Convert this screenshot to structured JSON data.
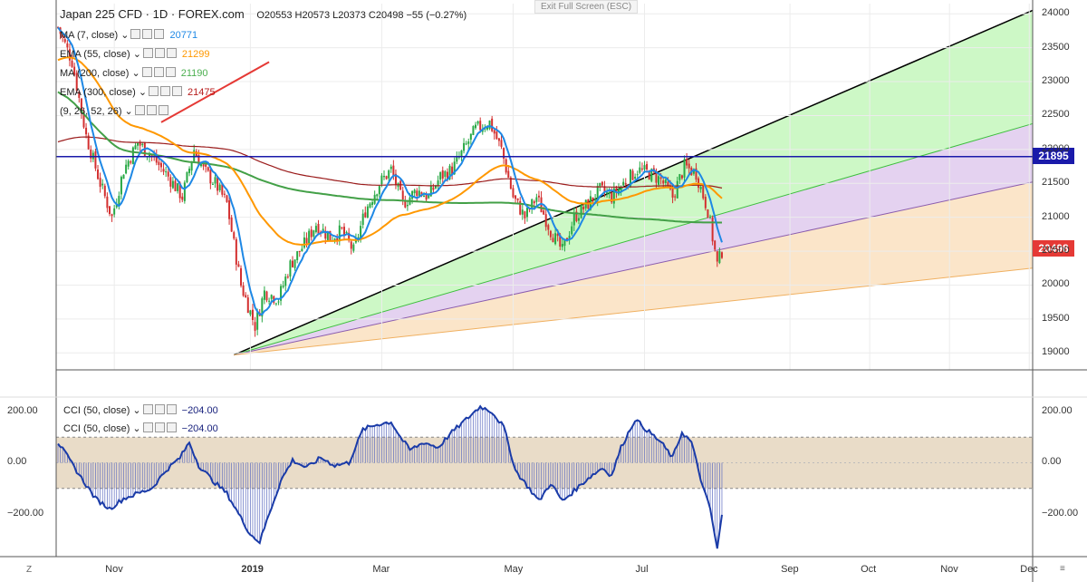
{
  "header": {
    "title": "Japan 225 CFD · 1D · FOREX.com",
    "ohlc": "O20553  H20573  L20373  C20498  −55 (−0.27%)",
    "exit_fullscreen": "Exit Full Screen (ESC)"
  },
  "legends": [
    {
      "label": "MA (7, close)",
      "value": "20771",
      "color": "#1e88e5"
    },
    {
      "label": "EMA (55, close)",
      "value": "21299",
      "color": "#ff9800"
    },
    {
      "label": "MA (200, close)",
      "value": "21190",
      "color": "#4caf50"
    },
    {
      "label": "EMA (300, close)",
      "value": "21475",
      "color": "#b71c1c"
    },
    {
      "label": "(9, 26, 52, 26)",
      "value": "",
      "color": "#555555"
    }
  ],
  "cci_legends": [
    {
      "label": "CCI (50, close)",
      "value": "−204.00",
      "color": "#1a237e"
    },
    {
      "label": "CCI (50, close)",
      "value": "−204.00",
      "color": "#1a237e"
    }
  ],
  "price_tags": {
    "hline": {
      "value": "21895",
      "color": "#1a1aaa"
    },
    "last": {
      "value": "20498",
      "color": "#e53935"
    }
  },
  "bottom": {
    "left_button": "Z",
    "right_button": "≡"
  },
  "chart_data": {
    "type": "candlestick",
    "symbol": "Japan 225 CFD",
    "timeframe": "1D",
    "yaxis": {
      "ticks": [
        19000,
        19500,
        20000,
        20500,
        21000,
        21500,
        22000,
        22500,
        23000,
        23500,
        24000
      ],
      "range": [
        18750,
        24150
      ]
    },
    "xaxis": {
      "ticks": [
        "Nov",
        "2019",
        "Mar",
        "May",
        "Jul",
        "Sep",
        "Oct",
        "Nov",
        "Dec"
      ]
    },
    "horizontal_line": 21895,
    "last_price": 20498,
    "price_path": [
      {
        "d": 0,
        "p": 23800
      },
      {
        "d": 6,
        "p": 23300
      },
      {
        "d": 12,
        "p": 22200
      },
      {
        "d": 18,
        "p": 21500
      },
      {
        "d": 23,
        "p": 21000
      },
      {
        "d": 28,
        "p": 21700
      },
      {
        "d": 34,
        "p": 22100
      },
      {
        "d": 40,
        "p": 21900
      },
      {
        "d": 47,
        "p": 21600
      },
      {
        "d": 53,
        "p": 21300
      },
      {
        "d": 58,
        "p": 22000
      },
      {
        "d": 62,
        "p": 21700
      },
      {
        "d": 67,
        "p": 21500
      },
      {
        "d": 72,
        "p": 21200
      },
      {
        "d": 78,
        "p": 20000
      },
      {
        "d": 84,
        "p": 19400
      },
      {
        "d": 88,
        "p": 19900
      },
      {
        "d": 94,
        "p": 19800
      },
      {
        "d": 99,
        "p": 20300
      },
      {
        "d": 105,
        "p": 20600
      },
      {
        "d": 110,
        "p": 20900
      },
      {
        "d": 116,
        "p": 20700
      },
      {
        "d": 121,
        "p": 20800
      },
      {
        "d": 126,
        "p": 20500
      },
      {
        "d": 131,
        "p": 21100
      },
      {
        "d": 137,
        "p": 21500
      },
      {
        "d": 142,
        "p": 21700
      },
      {
        "d": 147,
        "p": 21200
      },
      {
        "d": 153,
        "p": 21400
      },
      {
        "d": 158,
        "p": 21300
      },
      {
        "d": 163,
        "p": 21600
      },
      {
        "d": 168,
        "p": 21700
      },
      {
        "d": 173,
        "p": 22000
      },
      {
        "d": 178,
        "p": 22300
      },
      {
        "d": 184,
        "p": 22400
      },
      {
        "d": 189,
        "p": 22000
      },
      {
        "d": 194,
        "p": 21300
      },
      {
        "d": 199,
        "p": 21000
      },
      {
        "d": 204,
        "p": 21300
      },
      {
        "d": 210,
        "p": 20800
      },
      {
        "d": 215,
        "p": 20500
      },
      {
        "d": 220,
        "p": 21000
      },
      {
        "d": 226,
        "p": 21200
      },
      {
        "d": 231,
        "p": 21400
      },
      {
        "d": 236,
        "p": 21300
      },
      {
        "d": 241,
        "p": 21500
      },
      {
        "d": 247,
        "p": 21700
      },
      {
        "d": 252,
        "p": 21650
      },
      {
        "d": 257,
        "p": 21550
      },
      {
        "d": 262,
        "p": 21300
      },
      {
        "d": 267,
        "p": 21750
      },
      {
        "d": 272,
        "p": 21650
      },
      {
        "d": 277,
        "p": 21100
      },
      {
        "d": 281,
        "p": 20300
      },
      {
        "d": 283,
        "p": 20498
      }
    ],
    "indicators": [
      {
        "name": "MA (7, close)",
        "last": 20771
      },
      {
        "name": "EMA (55, close)",
        "last": 21299
      },
      {
        "name": "MA (200, close)",
        "last": 21190
      },
      {
        "name": "EMA (300, close)",
        "last": 21475
      }
    ],
    "cci": {
      "label": "CCI (50, close)",
      "ticks": [
        200,
        0,
        -200
      ],
      "band": [
        -100,
        100
      ],
      "range": [
        -360,
        250
      ],
      "last": -204,
      "path": [
        {
          "d": 0,
          "p": 80
        },
        {
          "d": 5,
          "p": 10
        },
        {
          "d": 10,
          "p": -60
        },
        {
          "d": 16,
          "p": -140
        },
        {
          "d": 22,
          "p": -180
        },
        {
          "d": 28,
          "p": -140
        },
        {
          "d": 34,
          "p": -120
        },
        {
          "d": 40,
          "p": -100
        },
        {
          "d": 46,
          "p": -30
        },
        {
          "d": 52,
          "p": 20
        },
        {
          "d": 56,
          "p": 80
        },
        {
          "d": 60,
          "p": -10
        },
        {
          "d": 66,
          "p": -70
        },
        {
          "d": 72,
          "p": -120
        },
        {
          "d": 77,
          "p": -200
        },
        {
          "d": 82,
          "p": -280
        },
        {
          "d": 86,
          "p": -310
        },
        {
          "d": 90,
          "p": -200
        },
        {
          "d": 95,
          "p": -70
        },
        {
          "d": 100,
          "p": 10
        },
        {
          "d": 106,
          "p": -20
        },
        {
          "d": 112,
          "p": 20
        },
        {
          "d": 118,
          "p": -10
        },
        {
          "d": 124,
          "p": 0
        },
        {
          "d": 130,
          "p": 130
        },
        {
          "d": 136,
          "p": 150
        },
        {
          "d": 142,
          "p": 160
        },
        {
          "d": 146,
          "p": 100
        },
        {
          "d": 150,
          "p": 50
        },
        {
          "d": 156,
          "p": 80
        },
        {
          "d": 162,
          "p": 60
        },
        {
          "d": 168,
          "p": 120
        },
        {
          "d": 174,
          "p": 170
        },
        {
          "d": 180,
          "p": 220
        },
        {
          "d": 185,
          "p": 200
        },
        {
          "d": 190,
          "p": 140
        },
        {
          "d": 195,
          "p": -30
        },
        {
          "d": 200,
          "p": -90
        },
        {
          "d": 205,
          "p": -150
        },
        {
          "d": 210,
          "p": -80
        },
        {
          "d": 215,
          "p": -150
        },
        {
          "d": 220,
          "p": -110
        },
        {
          "d": 226,
          "p": -60
        },
        {
          "d": 232,
          "p": -20
        },
        {
          "d": 236,
          "p": -50
        },
        {
          "d": 240,
          "p": 60
        },
        {
          "d": 246,
          "p": 170
        },
        {
          "d": 252,
          "p": 120
        },
        {
          "d": 257,
          "p": 80
        },
        {
          "d": 262,
          "p": 20
        },
        {
          "d": 266,
          "p": 120
        },
        {
          "d": 270,
          "p": 80
        },
        {
          "d": 275,
          "p": -100
        },
        {
          "d": 278,
          "p": -180
        },
        {
          "d": 281,
          "p": -340
        },
        {
          "d": 283,
          "p": -204
        }
      ]
    }
  }
}
